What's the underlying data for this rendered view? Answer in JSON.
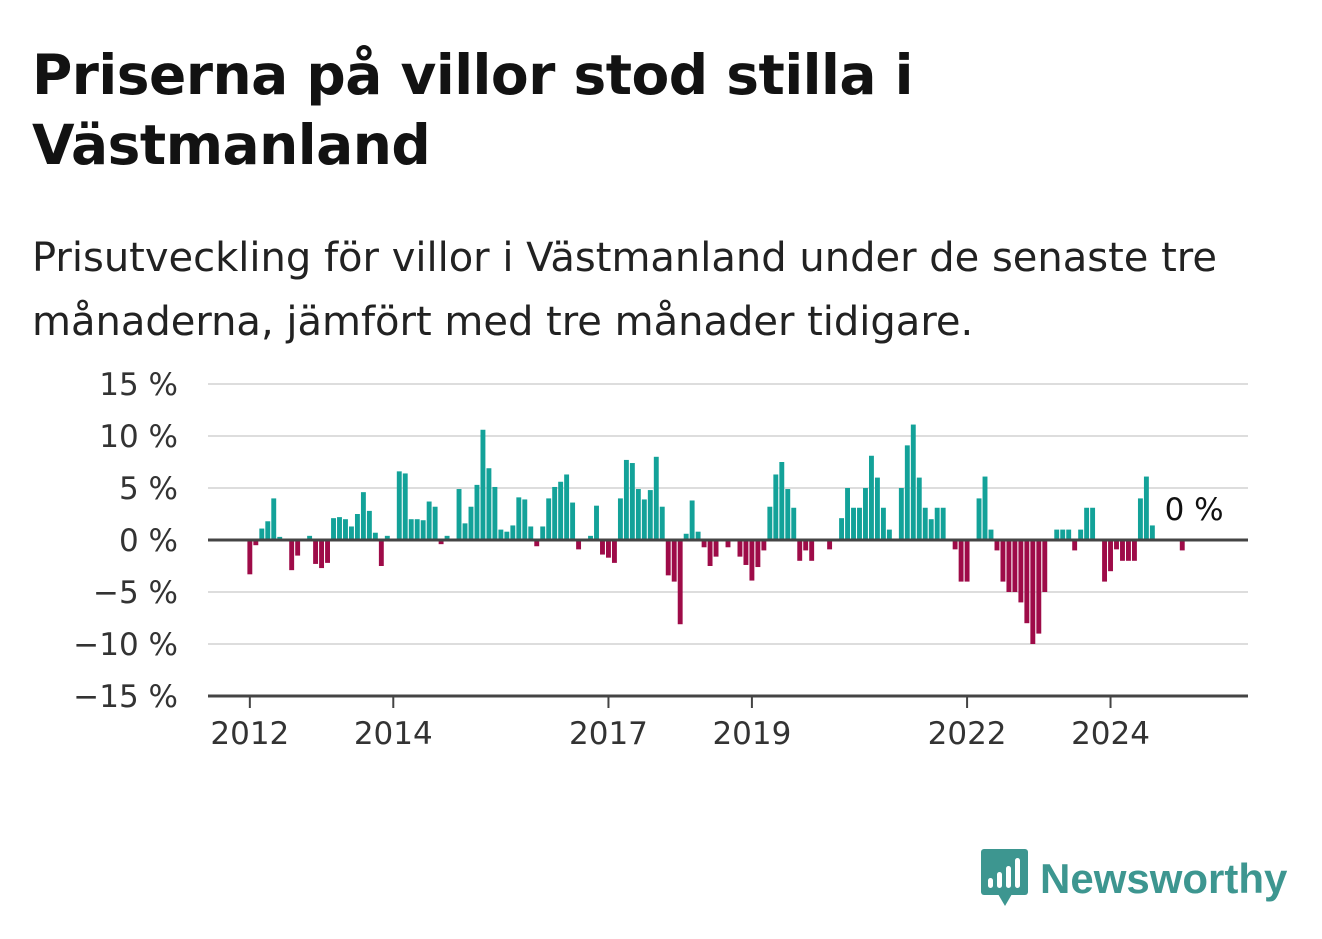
{
  "title": "Priserna på villor stod stilla i Västmanland",
  "subtitle": "Prisutveckling för villor i Västmanland under de senaste tre månaderna, jämfört med tre månader tidigare.",
  "brand": {
    "name": "Newsworthy",
    "icon": "newsworthy-logo-icon",
    "color": "#3d9690"
  },
  "colors": {
    "positive": "#13a299",
    "negative": "#9e0b48",
    "grid": "#dddddd",
    "axis": "#444444"
  },
  "chart_data": {
    "type": "bar",
    "title": "Priserna på villor stod stilla i Västmanland",
    "subtitle": "Prisutveckling för villor i Västmanland under de senaste tre månaderna, jämfört med tre månader tidigare.",
    "xlabel": "",
    "ylabel": "",
    "unit": "%",
    "ylim": [
      -15,
      15
    ],
    "yticks": [
      15,
      10,
      5,
      0,
      -5,
      -10,
      -15
    ],
    "ytick_labels": [
      "15 %",
      "10 %",
      "5 %",
      "0 %",
      "−5 %",
      "−10 %",
      "−15 %"
    ],
    "xlim": [
      "2011-06",
      "2025-12"
    ],
    "xticks": [
      "2012-01",
      "2014-01",
      "2017-01",
      "2019-01",
      "2022-01",
      "2024-01"
    ],
    "xtick_labels": [
      "2012",
      "2014",
      "2017",
      "2019",
      "2022",
      "2024"
    ],
    "grid": true,
    "legend": "none",
    "end_label": "0 %",
    "x": [
      "2012-01",
      "2012-02",
      "2012-03",
      "2012-04",
      "2012-05",
      "2012-06",
      "2012-07",
      "2012-08",
      "2012-09",
      "2012-10",
      "2012-11",
      "2012-12",
      "2013-01",
      "2013-02",
      "2013-03",
      "2013-04",
      "2013-05",
      "2013-06",
      "2013-07",
      "2013-08",
      "2013-09",
      "2013-10",
      "2013-11",
      "2013-12",
      "2014-01",
      "2014-02",
      "2014-03",
      "2014-04",
      "2014-05",
      "2014-06",
      "2014-07",
      "2014-08",
      "2014-09",
      "2014-10",
      "2014-11",
      "2014-12",
      "2015-01",
      "2015-02",
      "2015-03",
      "2015-04",
      "2015-05",
      "2015-06",
      "2015-07",
      "2015-08",
      "2015-09",
      "2015-10",
      "2015-11",
      "2015-12",
      "2016-01",
      "2016-02",
      "2016-03",
      "2016-04",
      "2016-05",
      "2016-06",
      "2016-07",
      "2016-08",
      "2016-09",
      "2016-10",
      "2016-11",
      "2016-12",
      "2017-01",
      "2017-02",
      "2017-03",
      "2017-04",
      "2017-05",
      "2017-06",
      "2017-07",
      "2017-08",
      "2017-09",
      "2017-10",
      "2017-11",
      "2017-12",
      "2018-01",
      "2018-02",
      "2018-03",
      "2018-04",
      "2018-05",
      "2018-06",
      "2018-07",
      "2018-08",
      "2018-09",
      "2018-10",
      "2018-11",
      "2018-12",
      "2019-01",
      "2019-02",
      "2019-03",
      "2019-04",
      "2019-05",
      "2019-06",
      "2019-07",
      "2019-08",
      "2019-09",
      "2019-10",
      "2019-11",
      "2019-12",
      "2020-01",
      "2020-02",
      "2020-03",
      "2020-04",
      "2020-05",
      "2020-06",
      "2020-07",
      "2020-08",
      "2020-09",
      "2020-10",
      "2020-11",
      "2020-12",
      "2021-01",
      "2021-02",
      "2021-03",
      "2021-04",
      "2021-05",
      "2021-06",
      "2021-07",
      "2021-08",
      "2021-09",
      "2021-10",
      "2021-11",
      "2021-12",
      "2022-01",
      "2022-02",
      "2022-03",
      "2022-04",
      "2022-05",
      "2022-06",
      "2022-07",
      "2022-08",
      "2022-09",
      "2022-10",
      "2022-11",
      "2022-12",
      "2023-01",
      "2023-02",
      "2023-03",
      "2023-04",
      "2023-05",
      "2023-06",
      "2023-07",
      "2023-08",
      "2023-09",
      "2023-10",
      "2023-11",
      "2023-12",
      "2024-01",
      "2024-02",
      "2024-03",
      "2024-04",
      "2024-05",
      "2024-06",
      "2024-07",
      "2024-08",
      "2024-09",
      "2024-10",
      "2024-11",
      "2024-12",
      "2025-01",
      "2025-02",
      "2025-03",
      "2025-04",
      "2025-05",
      "2025-06",
      "2025-07",
      "2025-08"
    ],
    "values": [
      -3.3,
      -0.5,
      1.1,
      1.8,
      4.0,
      0.3,
      0.1,
      -2.9,
      -1.5,
      0.1,
      0.4,
      -2.3,
      -2.7,
      -2.2,
      2.1,
      2.2,
      2.0,
      1.3,
      2.5,
      4.6,
      2.8,
      0.7,
      -2.5,
      0.4,
      0.0,
      6.6,
      6.4,
      2.0,
      2.0,
      1.9,
      3.7,
      3.2,
      -0.4,
      0.4,
      0.1,
      4.9,
      1.6,
      3.2,
      5.3,
      10.6,
      6.9,
      5.1,
      1.0,
      0.8,
      1.4,
      4.1,
      3.9,
      1.3,
      -0.6,
      1.3,
      4.0,
      5.1,
      5.6,
      6.3,
      3.6,
      -0.9,
      0.0,
      0.4,
      3.3,
      -1.4,
      -1.7,
      -2.2,
      4.0,
      7.7,
      7.4,
      4.9,
      3.9,
      4.8,
      8.0,
      3.2,
      -3.4,
      -4.0,
      -8.1,
      0.6,
      3.8,
      0.8,
      -0.7,
      -2.5,
      -1.6,
      0.1,
      -0.7,
      0.0,
      -1.6,
      -2.4,
      -3.9,
      -2.6,
      -1.0,
      3.2,
      6.3,
      7.5,
      4.9,
      3.1,
      -2.0,
      -1.0,
      -2.0,
      0.1,
      0.0,
      -0.9,
      0.1,
      2.1,
      5.0,
      3.1,
      3.1,
      5.0,
      8.1,
      6.0,
      3.1,
      1.0,
      0.1,
      5.0,
      9.1,
      11.1,
      6.0,
      3.1,
      2.0,
      3.1,
      3.1,
      0.1,
      -0.9,
      -4.0,
      -4.0,
      0.1,
      4.0,
      6.1,
      1.0,
      -1.0,
      -4.0,
      -5.0,
      -5.0,
      -6.0,
      -8.0,
      -10.0,
      -9.0,
      -5.0,
      0.1,
      1.0,
      1.0,
      1.0,
      -1.0,
      1.0,
      3.1,
      3.1,
      0.1,
      -4.0,
      -3.0,
      -0.9,
      -2.0,
      -2.0,
      -2.0,
      4.0,
      6.1,
      1.4,
      0.0,
      0.0,
      0.0,
      0.0,
      -1.0,
      0.0,
      0.0,
      0.0,
      0.0,
      0.0,
      0.0,
      0.0
    ]
  }
}
